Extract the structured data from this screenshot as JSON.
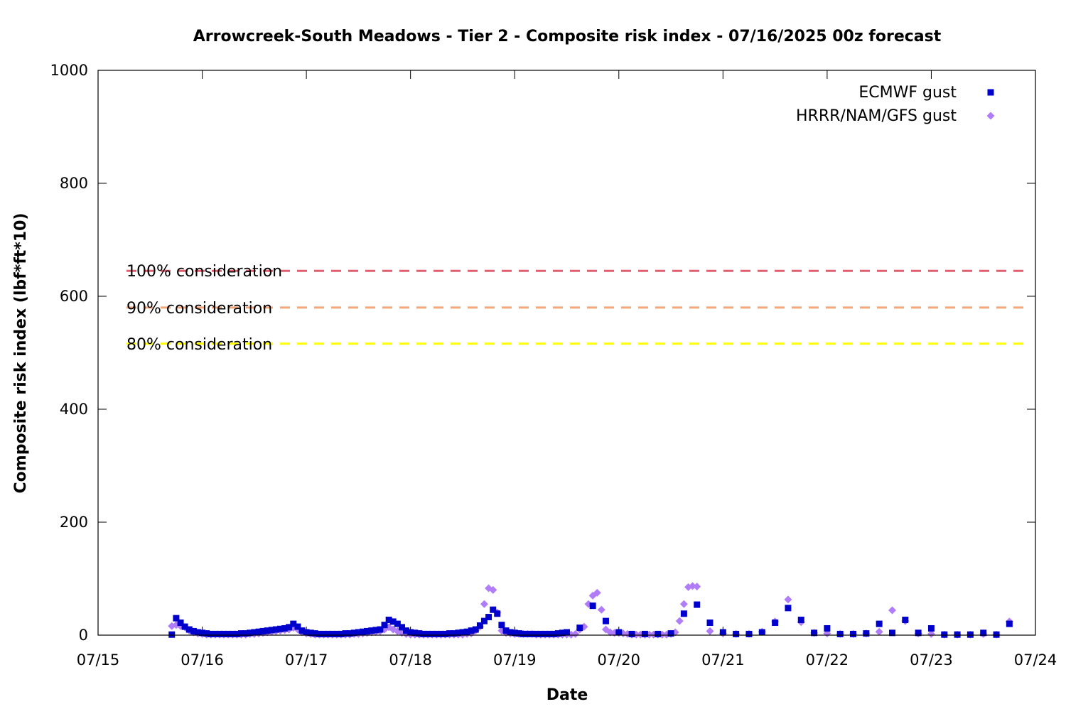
{
  "chart_data": {
    "type": "scatter",
    "title": "Arrowcreek-South Meadows - Tier 2 - Composite risk index - 07/16/2025 00z forecast",
    "xlabel": "Date",
    "ylabel": "Composite risk index (lbf*ft*10)",
    "x_unit": "days since 07/15 00z",
    "xlim": [
      0,
      9
    ],
    "ylim": [
      0,
      1000
    ],
    "x_ticks": [
      0,
      1,
      2,
      3,
      4,
      5,
      6,
      7,
      8,
      9
    ],
    "x_tick_labels": [
      "07/15",
      "07/16",
      "07/17",
      "07/18",
      "07/19",
      "07/20",
      "07/21",
      "07/22",
      "07/23",
      "07/24"
    ],
    "y_ticks": [
      0,
      200,
      400,
      600,
      800,
      1000
    ],
    "y_tick_labels": [
      "0",
      "200",
      "400",
      "600",
      "800",
      "1000"
    ],
    "grid": false,
    "legend_position": "top-right",
    "thresholds": [
      {
        "label": "100% consideration",
        "value": 645,
        "color": "#e06070"
      },
      {
        "label": "90% consideration",
        "value": 580,
        "color": "#f4a77a"
      },
      {
        "label": "80% consideration",
        "value": 516,
        "color": "#ffff00"
      }
    ],
    "series": [
      {
        "name": "ECMWF gust",
        "marker": "square",
        "color": "#0000cc",
        "points": [
          [
            0.708,
            1
          ],
          [
            0.75,
            30
          ],
          [
            0.792,
            22
          ],
          [
            0.833,
            15
          ],
          [
            0.875,
            10
          ],
          [
            0.917,
            7
          ],
          [
            0.958,
            5
          ],
          [
            1.0,
            4
          ],
          [
            1.042,
            3
          ],
          [
            1.083,
            2
          ],
          [
            1.125,
            2
          ],
          [
            1.167,
            2
          ],
          [
            1.208,
            2
          ],
          [
            1.25,
            2
          ],
          [
            1.292,
            2
          ],
          [
            1.333,
            2
          ],
          [
            1.375,
            3
          ],
          [
            1.417,
            3
          ],
          [
            1.458,
            4
          ],
          [
            1.5,
            5
          ],
          [
            1.542,
            6
          ],
          [
            1.583,
            7
          ],
          [
            1.625,
            8
          ],
          [
            1.667,
            9
          ],
          [
            1.708,
            10
          ],
          [
            1.75,
            11
          ],
          [
            1.792,
            12
          ],
          [
            1.833,
            14
          ],
          [
            1.875,
            20
          ],
          [
            1.917,
            15
          ],
          [
            1.958,
            8
          ],
          [
            2.0,
            5
          ],
          [
            2.042,
            4
          ],
          [
            2.083,
            3
          ],
          [
            2.125,
            2
          ],
          [
            2.167,
            2
          ],
          [
            2.208,
            2
          ],
          [
            2.25,
            2
          ],
          [
            2.292,
            2
          ],
          [
            2.333,
            2
          ],
          [
            2.375,
            3
          ],
          [
            2.417,
            3
          ],
          [
            2.458,
            4
          ],
          [
            2.5,
            5
          ],
          [
            2.542,
            6
          ],
          [
            2.583,
            7
          ],
          [
            2.625,
            8
          ],
          [
            2.667,
            9
          ],
          [
            2.708,
            10
          ],
          [
            2.75,
            18
          ],
          [
            2.792,
            27
          ],
          [
            2.833,
            24
          ],
          [
            2.875,
            20
          ],
          [
            2.917,
            14
          ],
          [
            2.958,
            8
          ],
          [
            3.0,
            5
          ],
          [
            3.042,
            4
          ],
          [
            3.083,
            3
          ],
          [
            3.125,
            2
          ],
          [
            3.167,
            2
          ],
          [
            3.208,
            2
          ],
          [
            3.25,
            2
          ],
          [
            3.292,
            2
          ],
          [
            3.333,
            2
          ],
          [
            3.375,
            3
          ],
          [
            3.417,
            3
          ],
          [
            3.458,
            4
          ],
          [
            3.5,
            5
          ],
          [
            3.542,
            6
          ],
          [
            3.583,
            8
          ],
          [
            3.625,
            10
          ],
          [
            3.667,
            17
          ],
          [
            3.708,
            25
          ],
          [
            3.75,
            32
          ],
          [
            3.792,
            45
          ],
          [
            3.833,
            38
          ],
          [
            3.875,
            18
          ],
          [
            3.917,
            8
          ],
          [
            3.958,
            5
          ],
          [
            4.0,
            4
          ],
          [
            4.042,
            3
          ],
          [
            4.083,
            2
          ],
          [
            4.125,
            2
          ],
          [
            4.167,
            2
          ],
          [
            4.208,
            2
          ],
          [
            4.25,
            2
          ],
          [
            4.292,
            2
          ],
          [
            4.333,
            2
          ],
          [
            4.375,
            2
          ],
          [
            4.417,
            3
          ],
          [
            4.458,
            4
          ],
          [
            4.5,
            5
          ],
          [
            4.625,
            13
          ],
          [
            4.75,
            52
          ],
          [
            4.875,
            25
          ],
          [
            5.0,
            5
          ],
          [
            5.125,
            2
          ],
          [
            5.25,
            2
          ],
          [
            5.375,
            2
          ],
          [
            5.5,
            3
          ],
          [
            5.625,
            38
          ],
          [
            5.75,
            54
          ],
          [
            5.875,
            22
          ],
          [
            6.0,
            5
          ],
          [
            6.125,
            2
          ],
          [
            6.25,
            2
          ],
          [
            6.375,
            5
          ],
          [
            6.5,
            22
          ],
          [
            6.625,
            48
          ],
          [
            6.75,
            27
          ],
          [
            6.875,
            4
          ],
          [
            7.0,
            12
          ],
          [
            7.125,
            2
          ],
          [
            7.25,
            2
          ],
          [
            7.375,
            3
          ],
          [
            7.5,
            20
          ],
          [
            7.625,
            4
          ],
          [
            7.75,
            27
          ],
          [
            7.875,
            4
          ],
          [
            8.0,
            12
          ],
          [
            8.125,
            1
          ],
          [
            8.25,
            1
          ],
          [
            8.375,
            1
          ],
          [
            8.5,
            4
          ],
          [
            8.625,
            1
          ],
          [
            8.75,
            20
          ]
        ]
      },
      {
        "name": "HRRR/NAM/GFS gust",
        "marker": "diamond",
        "color": "#b07cf8",
        "points": [
          [
            0.708,
            16
          ],
          [
            0.75,
            18
          ],
          [
            0.792,
            16
          ],
          [
            0.833,
            14
          ],
          [
            0.875,
            8
          ],
          [
            0.917,
            5
          ],
          [
            0.958,
            3
          ],
          [
            1.0,
            2
          ],
          [
            1.042,
            1
          ],
          [
            1.083,
            1
          ],
          [
            1.125,
            1
          ],
          [
            1.167,
            1
          ],
          [
            1.208,
            1
          ],
          [
            1.25,
            1
          ],
          [
            1.292,
            1
          ],
          [
            1.333,
            1
          ],
          [
            1.375,
            1
          ],
          [
            1.417,
            1
          ],
          [
            1.458,
            2
          ],
          [
            1.5,
            2
          ],
          [
            1.542,
            3
          ],
          [
            1.583,
            4
          ],
          [
            1.625,
            5
          ],
          [
            1.667,
            6
          ],
          [
            1.708,
            7
          ],
          [
            1.75,
            8
          ],
          [
            1.792,
            9
          ],
          [
            1.833,
            10
          ],
          [
            1.875,
            13
          ],
          [
            1.917,
            10
          ],
          [
            1.958,
            5
          ],
          [
            2.0,
            3
          ],
          [
            2.042,
            2
          ],
          [
            2.083,
            1
          ],
          [
            2.125,
            1
          ],
          [
            2.167,
            1
          ],
          [
            2.208,
            1
          ],
          [
            2.25,
            1
          ],
          [
            2.292,
            1
          ],
          [
            2.333,
            1
          ],
          [
            2.375,
            1
          ],
          [
            2.417,
            1
          ],
          [
            2.458,
            2
          ],
          [
            2.5,
            2
          ],
          [
            2.542,
            3
          ],
          [
            2.583,
            4
          ],
          [
            2.625,
            5
          ],
          [
            2.667,
            6
          ],
          [
            2.708,
            7
          ],
          [
            2.75,
            10
          ],
          [
            2.792,
            14
          ],
          [
            2.833,
            10
          ],
          [
            2.875,
            7
          ],
          [
            2.917,
            4
          ],
          [
            2.958,
            2
          ],
          [
            3.0,
            1
          ],
          [
            3.042,
            1
          ],
          [
            3.083,
            1
          ],
          [
            3.125,
            1
          ],
          [
            3.167,
            1
          ],
          [
            3.208,
            1
          ],
          [
            3.25,
            1
          ],
          [
            3.292,
            1
          ],
          [
            3.333,
            1
          ],
          [
            3.375,
            1
          ],
          [
            3.417,
            1
          ],
          [
            3.458,
            1
          ],
          [
            3.5,
            1
          ],
          [
            3.542,
            2
          ],
          [
            3.583,
            3
          ],
          [
            3.625,
            8
          ],
          [
            3.667,
            15
          ],
          [
            3.708,
            55
          ],
          [
            3.75,
            83
          ],
          [
            3.792,
            80
          ],
          [
            3.833,
            40
          ],
          [
            3.875,
            8
          ],
          [
            3.917,
            4
          ],
          [
            3.958,
            3
          ],
          [
            4.0,
            2
          ],
          [
            4.042,
            2
          ],
          [
            4.083,
            2
          ],
          [
            4.125,
            2
          ],
          [
            4.167,
            2
          ],
          [
            4.208,
            1
          ],
          [
            4.25,
            1
          ],
          [
            4.292,
            1
          ],
          [
            4.333,
            1
          ],
          [
            4.375,
            1
          ],
          [
            4.417,
            1
          ],
          [
            4.458,
            1
          ],
          [
            4.5,
            1
          ],
          [
            4.542,
            1
          ],
          [
            4.583,
            2
          ],
          [
            4.625,
            10
          ],
          [
            4.667,
            15
          ],
          [
            4.708,
            55
          ],
          [
            4.75,
            70
          ],
          [
            4.792,
            75
          ],
          [
            4.833,
            45
          ],
          [
            4.875,
            10
          ],
          [
            4.917,
            5
          ],
          [
            4.958,
            4
          ],
          [
            5.0,
            4
          ],
          [
            5.042,
            3
          ],
          [
            5.083,
            2
          ],
          [
            5.125,
            1
          ],
          [
            5.167,
            1
          ],
          [
            5.208,
            1
          ],
          [
            5.25,
            1
          ],
          [
            5.292,
            1
          ],
          [
            5.333,
            1
          ],
          [
            5.375,
            1
          ],
          [
            5.417,
            1
          ],
          [
            5.458,
            1
          ],
          [
            5.5,
            2
          ],
          [
            5.542,
            5
          ],
          [
            5.583,
            25
          ],
          [
            5.625,
            55
          ],
          [
            5.667,
            85
          ],
          [
            5.708,
            87
          ],
          [
            5.75,
            86
          ],
          [
            5.875,
            7
          ],
          [
            6.0,
            3
          ],
          [
            6.125,
            2
          ],
          [
            6.25,
            2
          ],
          [
            6.375,
            6
          ],
          [
            6.5,
            24
          ],
          [
            6.625,
            63
          ],
          [
            6.75,
            23
          ],
          [
            6.875,
            4
          ],
          [
            7.0,
            3
          ],
          [
            7.125,
            2
          ],
          [
            7.25,
            2
          ],
          [
            7.375,
            3
          ],
          [
            7.5,
            6
          ],
          [
            7.625,
            44
          ],
          [
            7.75,
            25
          ],
          [
            7.875,
            3
          ],
          [
            8.0,
            2
          ],
          [
            8.125,
            1
          ],
          [
            8.25,
            1
          ],
          [
            8.375,
            1
          ],
          [
            8.5,
            2
          ],
          [
            8.625,
            1
          ],
          [
            8.75,
            24
          ]
        ]
      }
    ]
  }
}
